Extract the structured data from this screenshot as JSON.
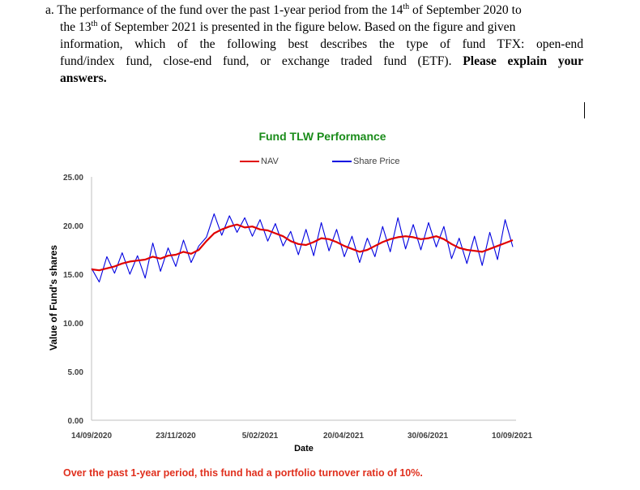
{
  "question": {
    "line1_pre": "a. The performance of the fund over the past 1-year period from the 14",
    "line1_sup1": "th",
    "line1_mid": " of September 2020 to",
    "line2_pre": "the 13",
    "line2_sup": "th",
    "line2_post": " of September 2021 is presented in the figure below. Based on the figure and given",
    "line3": "information, which of the following best describes the type of fund TFX: open-end",
    "line4_pre": "fund/index fund, close-end fund, or exchange traded fund (ETF).",
    "line4_bold": "Please explain your",
    "line5_bold": "answers."
  },
  "note": "Over the past 1-year period, this fund had a portfolio turnover ratio of 10%.",
  "colors": {
    "nav": "#e00000",
    "price": "#0000e0",
    "title": "#1a8c1a",
    "note": "#e0301e"
  },
  "chart_data": {
    "type": "line",
    "title": "Fund TLW Performance",
    "xlabel": "Date",
    "ylabel": "Value of Fund's shares",
    "ylim": [
      0,
      25
    ],
    "yticks": [
      "0.00",
      "5.00",
      "10.00",
      "15.00",
      "20.00",
      "25.00"
    ],
    "xticks": [
      "14/09/2020",
      "23/11/2020",
      "5/02/2021",
      "20/04/2021",
      "30/06/2021",
      "10/09/2021"
    ],
    "legend": [
      "NAV",
      "Share Price"
    ],
    "series": [
      {
        "name": "NAV",
        "color": "#e00000",
        "values": [
          15.5,
          15.4,
          15.6,
          15.8,
          16.1,
          16.3,
          16.4,
          16.5,
          16.8,
          16.6,
          16.9,
          17.0,
          17.3,
          17.1,
          17.5,
          18.4,
          19.2,
          19.6,
          19.9,
          20.1,
          19.8,
          19.9,
          19.6,
          19.5,
          19.2,
          18.9,
          18.4,
          18.1,
          18.0,
          18.3,
          18.7,
          18.6,
          18.3,
          17.9,
          17.6,
          17.3,
          17.5,
          17.9,
          18.3,
          18.6,
          18.8,
          18.9,
          18.8,
          18.6,
          18.7,
          18.9,
          18.6,
          18.1,
          17.7,
          17.5,
          17.4,
          17.3,
          17.6,
          17.9,
          18.2,
          18.5
        ]
      },
      {
        "name": "Share Price",
        "color": "#0000e0",
        "values": [
          15.6,
          14.2,
          16.8,
          15.1,
          17.2,
          15.0,
          16.9,
          14.6,
          18.2,
          15.3,
          17.7,
          15.8,
          18.5,
          16.2,
          17.9,
          18.8,
          21.2,
          19.0,
          21.0,
          19.3,
          20.8,
          18.9,
          20.6,
          18.4,
          20.2,
          17.9,
          19.4,
          17.0,
          19.6,
          16.9,
          20.3,
          17.4,
          19.6,
          16.8,
          18.9,
          16.2,
          18.7,
          16.8,
          19.9,
          17.3,
          20.8,
          17.6,
          20.1,
          17.5,
          20.3,
          17.8,
          19.9,
          16.6,
          18.7,
          16.1,
          18.9,
          15.9,
          19.3,
          16.5,
          20.6,
          17.8
        ]
      }
    ]
  }
}
